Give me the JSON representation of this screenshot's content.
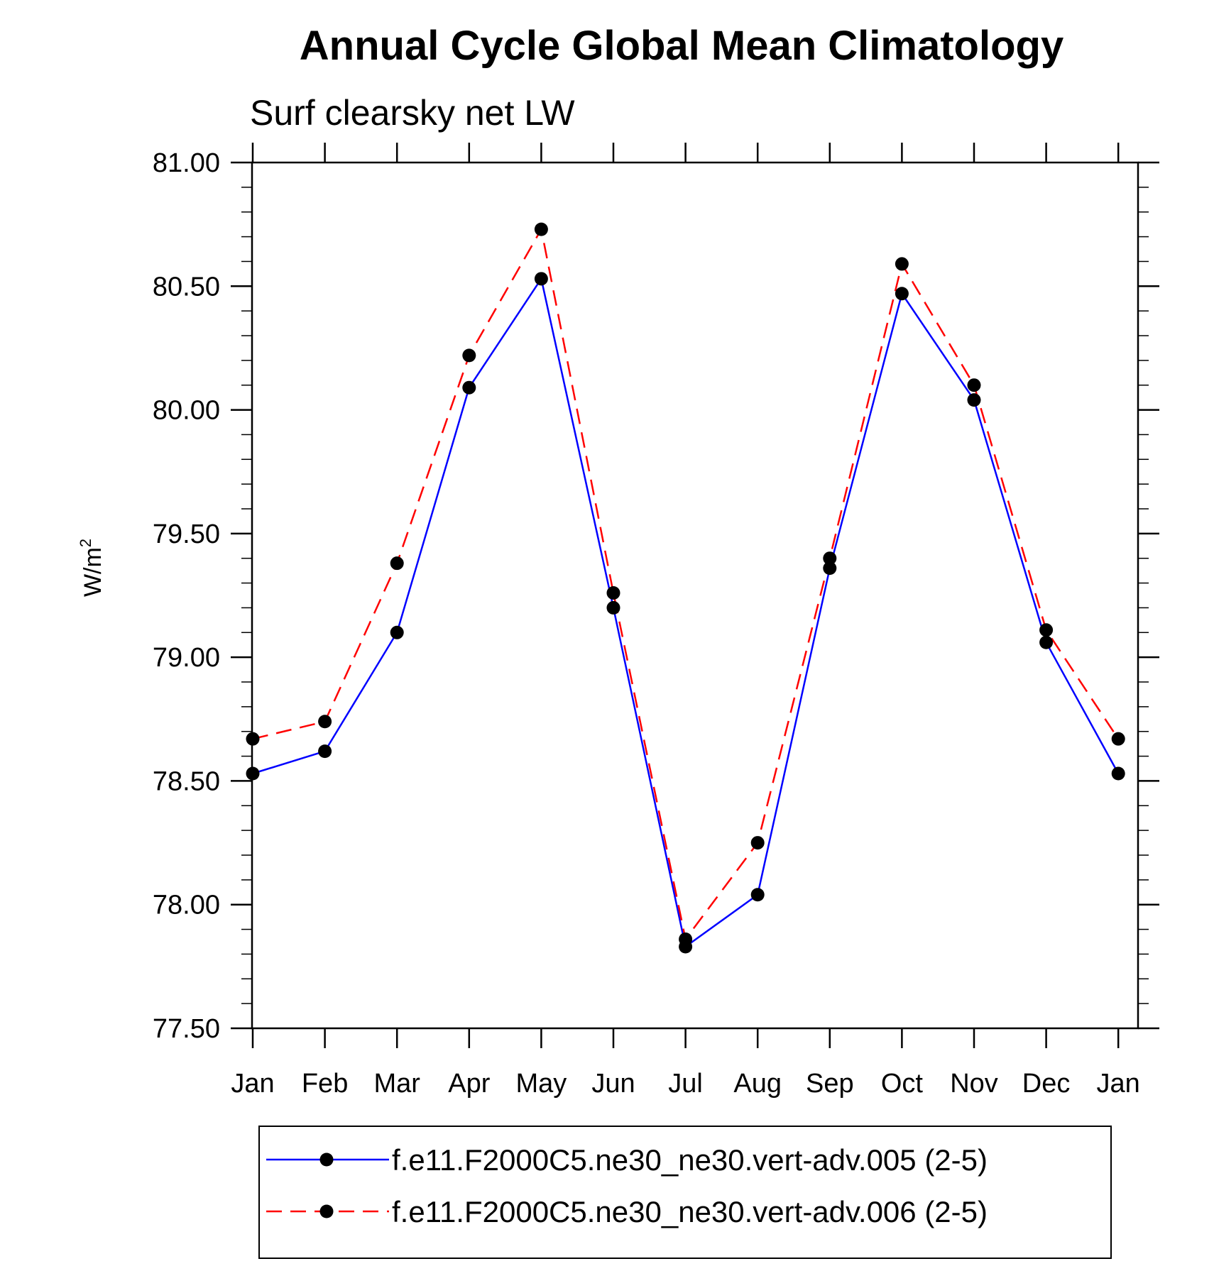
{
  "chart_data": {
    "type": "line",
    "title": "Annual Cycle Global Mean Climatology",
    "subtitle": "Surf clearsky net LW",
    "ylabel": "W/m",
    "ylabel_superscript": "2",
    "xlabel": "",
    "ylim": [
      77.5,
      81.0
    ],
    "yticks": [
      "77.50",
      "78.00",
      "78.50",
      "79.00",
      "79.50",
      "80.00",
      "80.50",
      "81.00"
    ],
    "categories": [
      "Jan",
      "Feb",
      "Mar",
      "Apr",
      "May",
      "Jun",
      "Jul",
      "Aug",
      "Sep",
      "Oct",
      "Nov",
      "Dec",
      "Jan"
    ],
    "series": [
      {
        "name": "f.e11.F2000C5.ne30_ne30.vert-adv.005 (2-5)",
        "color": "#0000ff",
        "dash": "solid",
        "values": [
          78.53,
          78.62,
          79.1,
          80.09,
          80.53,
          79.2,
          77.83,
          78.04,
          79.36,
          80.47,
          80.04,
          79.06,
          78.53
        ]
      },
      {
        "name": "f.e11.F2000C5.ne30_ne30.vert-adv.006 (2-5)",
        "color": "#ff0000",
        "dash": "dashed",
        "values": [
          78.67,
          78.74,
          79.38,
          80.22,
          80.73,
          79.26,
          77.86,
          78.25,
          79.4,
          80.59,
          80.1,
          79.11,
          78.67
        ]
      }
    ],
    "legend_position": "bottom"
  }
}
